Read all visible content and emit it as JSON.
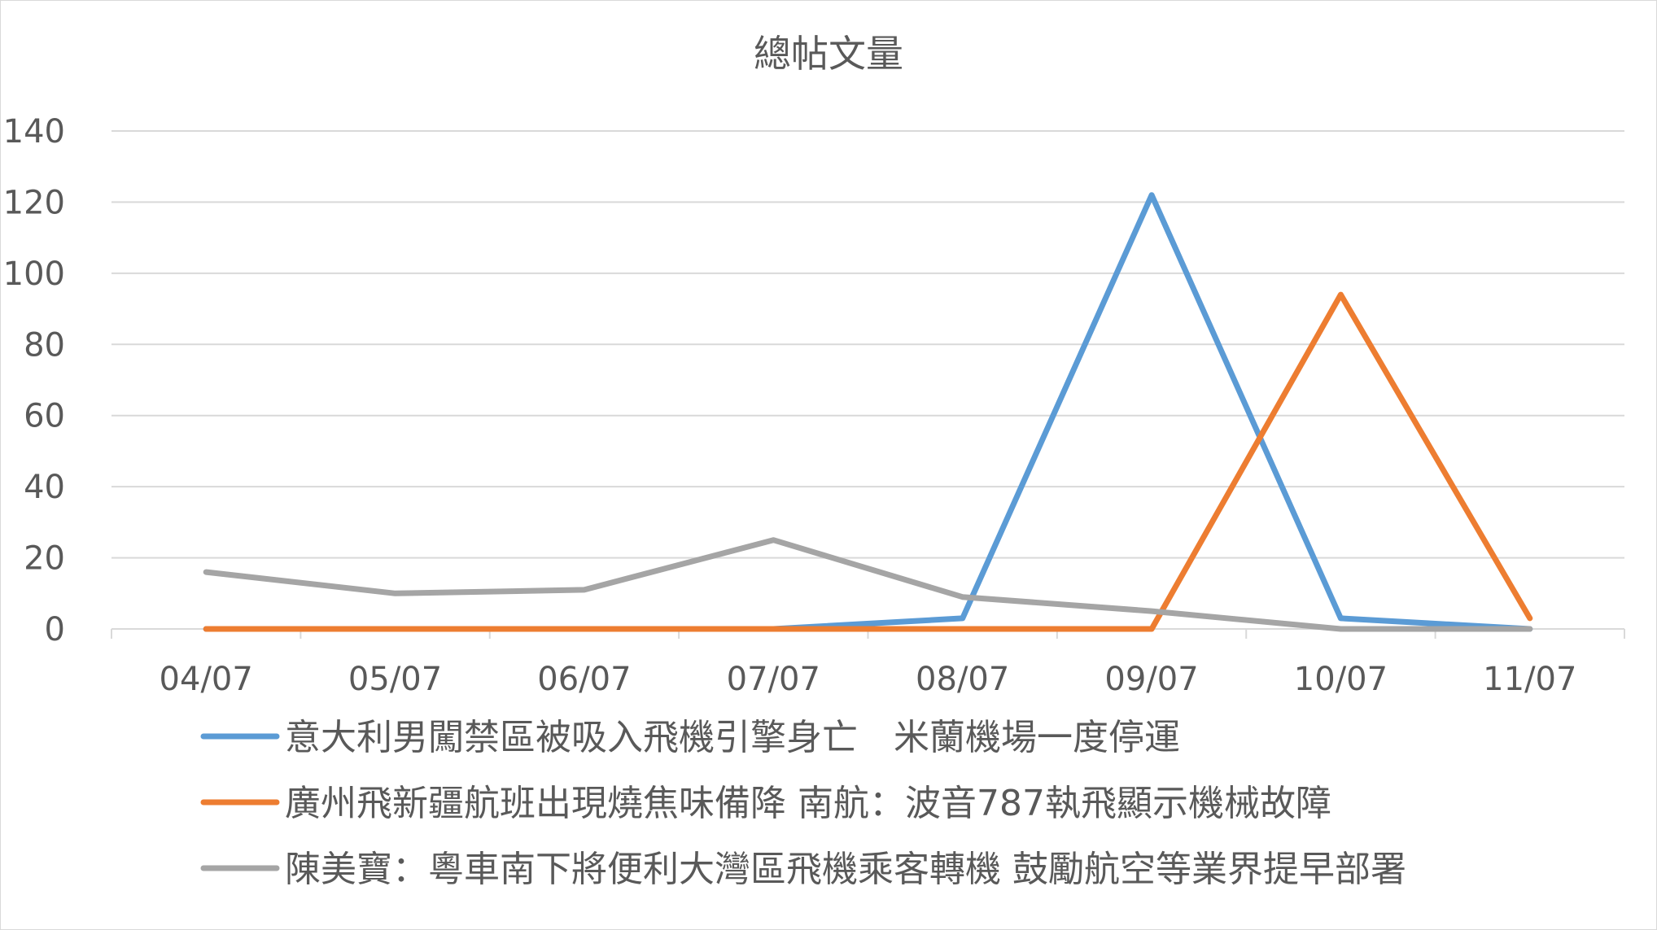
{
  "chart_data": {
    "type": "line",
    "title": "總帖文量",
    "xlabel": "",
    "ylabel": "",
    "categories": [
      "04/07",
      "05/07",
      "06/07",
      "07/07",
      "08/07",
      "09/07",
      "10/07",
      "11/07"
    ],
    "ylim": [
      0,
      140
    ],
    "yticks": [
      0,
      20,
      40,
      60,
      80,
      100,
      120,
      140
    ],
    "grid": true,
    "legend_position": "bottom",
    "series": [
      {
        "name": "意大利男闖禁區被吸入飛機引擎身亡　米蘭機場一度停運",
        "color": "#5B9BD5",
        "values": [
          0,
          0,
          0,
          0,
          3,
          122,
          3,
          0
        ]
      },
      {
        "name": "廣州飛新疆航班出現燒焦味備降 南航：波音787執飛顯示機械故障",
        "color": "#ED7D31",
        "values": [
          0,
          0,
          0,
          0,
          0,
          0,
          94,
          3
        ]
      },
      {
        "name": "陳美寶：粵車南下將便利大灣區飛機乘客轉機 鼓勵航空等業界提早部署",
        "color": "#A5A5A5",
        "values": [
          16,
          10,
          11,
          25,
          9,
          5,
          0,
          0
        ]
      }
    ]
  }
}
